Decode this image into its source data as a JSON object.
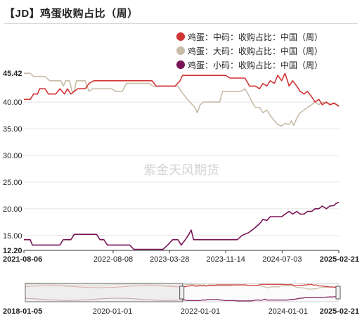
{
  "title": "【JD】鸡蛋收购占比（周）",
  "watermark": "紫金天风期货",
  "colors": {
    "large": "#c8bca8",
    "medium": "#d03535",
    "small": "#7a1557",
    "axis": "#333333",
    "grid": "#e4e4e4"
  },
  "chart_data": {
    "type": "line",
    "title": "【JD】鸡蛋收购占比（周）",
    "xlabel": "",
    "ylabel": "",
    "ylim": [
      12.2,
      45.42
    ],
    "yticks": [
      "45.42",
      "40.00",
      "35.00",
      "30.00",
      "25.00",
      "20.00",
      "15.00",
      "12.20"
    ],
    "x_range": [
      "2021-08-06",
      "2025-02-21"
    ],
    "xticks": [
      "2021-08-06",
      "2022-08-08",
      "2023-03-28",
      "2023-11-14",
      "2024-07-03",
      "2025-02-21"
    ],
    "legend_position": "top-right",
    "series": [
      {
        "name": "鸡蛋：大码：收购占比：中国（周）",
        "color": "#c8bca8",
        "points": [
          [
            "2021-08-06",
            45.4
          ],
          [
            "2021-09-01",
            45.4
          ],
          [
            "2021-09-15",
            44.8
          ],
          [
            "2021-10-01",
            44.8
          ],
          [
            "2021-11-01",
            44.8
          ],
          [
            "2021-11-20",
            44.0
          ],
          [
            "2021-12-15",
            44.0
          ],
          [
            "2022-01-05",
            44.0
          ],
          [
            "2022-01-15",
            43.0
          ],
          [
            "2022-01-25",
            44.0
          ],
          [
            "2022-02-10",
            44.0
          ],
          [
            "2022-02-20",
            42.0
          ],
          [
            "2022-03-01",
            42.0
          ],
          [
            "2022-03-10",
            44.0
          ],
          [
            "2022-04-15",
            44.0
          ],
          [
            "2022-05-01",
            42.0
          ],
          [
            "2022-05-15",
            42.5
          ],
          [
            "2022-06-01",
            42.5
          ],
          [
            "2022-07-01",
            42.5
          ],
          [
            "2022-08-01",
            42.5
          ],
          [
            "2022-08-20",
            42.0
          ],
          [
            "2022-09-15",
            42.0
          ],
          [
            "2022-10-01",
            43.5
          ],
          [
            "2022-11-01",
            43.5
          ],
          [
            "2022-12-01",
            43.5
          ],
          [
            "2023-01-01",
            43.5
          ],
          [
            "2023-01-20",
            43.0
          ],
          [
            "2023-03-01",
            43.0
          ],
          [
            "2023-04-15",
            43.0
          ],
          [
            "2023-05-01",
            43.0
          ],
          [
            "2023-05-15",
            42.0
          ],
          [
            "2023-06-01",
            41.0
          ],
          [
            "2023-06-20",
            40.0
          ],
          [
            "2023-07-10",
            39.0
          ],
          [
            "2023-07-20",
            38.0
          ],
          [
            "2023-08-01",
            39.5
          ],
          [
            "2023-08-15",
            40.0
          ],
          [
            "2023-09-01",
            40.0
          ],
          [
            "2023-10-01",
            40.0
          ],
          [
            "2023-10-20",
            40.0
          ],
          [
            "2023-11-01",
            42.0
          ],
          [
            "2023-11-15",
            42.0
          ],
          [
            "2023-12-15",
            42.0
          ],
          [
            "2024-01-15",
            42.0
          ],
          [
            "2024-02-01",
            42.5
          ],
          [
            "2024-02-20",
            41.0
          ],
          [
            "2024-03-01",
            40.0
          ],
          [
            "2024-03-15",
            39.0
          ],
          [
            "2024-04-01",
            39.0
          ],
          [
            "2024-04-15",
            38.0
          ],
          [
            "2024-05-01",
            38.5
          ],
          [
            "2024-05-15",
            37.5
          ],
          [
            "2024-06-01",
            36.5
          ],
          [
            "2024-06-15",
            35.8
          ],
          [
            "2024-07-01",
            35.5
          ],
          [
            "2024-07-15",
            36.0
          ],
          [
            "2024-08-01",
            35.8
          ],
          [
            "2024-08-10",
            36.5
          ],
          [
            "2024-08-20",
            35.6
          ],
          [
            "2024-09-01",
            37.0
          ],
          [
            "2024-09-15",
            38.0
          ],
          [
            "2024-10-01",
            38.5
          ],
          [
            "2024-10-15",
            39.0
          ],
          [
            "2024-11-01",
            39.5
          ],
          [
            "2024-11-15",
            40.0
          ],
          [
            "2024-12-01",
            39.5
          ],
          [
            "2024-12-15",
            40.0
          ],
          [
            "2025-01-05",
            39.8
          ],
          [
            "2025-01-20",
            39.5
          ],
          [
            "2025-02-01",
            39.8
          ],
          [
            "2025-02-10",
            39.6
          ],
          [
            "2025-02-21",
            39.4
          ]
        ]
      },
      {
        "name": "鸡蛋：中码：收购占比：中国（周）",
        "color": "#d03535",
        "points": [
          [
            "2021-08-06",
            40.5
          ],
          [
            "2021-09-01",
            40.5
          ],
          [
            "2021-09-15",
            41.5
          ],
          [
            "2021-10-01",
            41.5
          ],
          [
            "2021-10-10",
            42.5
          ],
          [
            "2021-11-01",
            42.5
          ],
          [
            "2021-11-15",
            41.5
          ],
          [
            "2021-12-15",
            41.5
          ],
          [
            "2022-01-01",
            42.5
          ],
          [
            "2022-01-20",
            41.5
          ],
          [
            "2022-02-01",
            42.5
          ],
          [
            "2022-02-15",
            41.5
          ],
          [
            "2022-03-15",
            42.5
          ],
          [
            "2022-04-15",
            42.5
          ],
          [
            "2022-05-01",
            43.5
          ],
          [
            "2022-05-20",
            44.0
          ],
          [
            "2022-06-15",
            44.0
          ],
          [
            "2022-08-01",
            44.0
          ],
          [
            "2022-09-15",
            44.0
          ],
          [
            "2022-10-15",
            44.0
          ],
          [
            "2022-11-15",
            44.0
          ],
          [
            "2022-12-15",
            44.0
          ],
          [
            "2023-01-15",
            44.0
          ],
          [
            "2023-02-01",
            43.0
          ],
          [
            "2023-03-01",
            43.0
          ],
          [
            "2023-04-01",
            43.0
          ],
          [
            "2023-04-20",
            43.0
          ],
          [
            "2023-05-10",
            44.0
          ],
          [
            "2023-05-20",
            45.0
          ],
          [
            "2023-06-15",
            45.0
          ],
          [
            "2023-08-01",
            45.0
          ],
          [
            "2023-09-01",
            45.0
          ],
          [
            "2023-10-01",
            45.0
          ],
          [
            "2023-11-01",
            45.0
          ],
          [
            "2023-11-14",
            45.0
          ],
          [
            "2023-12-01",
            44.5
          ],
          [
            "2024-01-01",
            44.5
          ],
          [
            "2024-02-01",
            44.5
          ],
          [
            "2024-02-20",
            43.0
          ],
          [
            "2024-03-15",
            43.0
          ],
          [
            "2024-04-01",
            42.5
          ],
          [
            "2024-04-15",
            43.5
          ],
          [
            "2024-05-01",
            43.0
          ],
          [
            "2024-05-15",
            44.0
          ],
          [
            "2024-06-01",
            43.5
          ],
          [
            "2024-06-15",
            45.0
          ],
          [
            "2024-07-01",
            44.0
          ],
          [
            "2024-07-15",
            45.4
          ],
          [
            "2024-08-01",
            43.0
          ],
          [
            "2024-08-15",
            44.0
          ],
          [
            "2024-09-01",
            43.0
          ],
          [
            "2024-09-15",
            42.0
          ],
          [
            "2024-10-01",
            41.5
          ],
          [
            "2024-10-15",
            42.0
          ],
          [
            "2024-11-01",
            41.0
          ],
          [
            "2024-11-15",
            40.0
          ],
          [
            "2024-12-01",
            40.5
          ],
          [
            "2024-12-15",
            39.5
          ],
          [
            "2025-01-01",
            40.0
          ],
          [
            "2025-01-15",
            39.5
          ],
          [
            "2025-02-01",
            39.8
          ],
          [
            "2025-02-21",
            39.2
          ]
        ]
      },
      {
        "name": "鸡蛋：小码：收购占比：中国（周）",
        "color": "#7a1557",
        "points": [
          [
            "2021-08-06",
            14.2
          ],
          [
            "2021-09-01",
            14.2
          ],
          [
            "2021-09-10",
            13.2
          ],
          [
            "2021-10-01",
            13.2
          ],
          [
            "2021-11-01",
            13.2
          ],
          [
            "2021-12-01",
            13.2
          ],
          [
            "2022-01-01",
            13.2
          ],
          [
            "2022-01-15",
            14.2
          ],
          [
            "2022-02-15",
            14.2
          ],
          [
            "2022-03-01",
            15.2
          ],
          [
            "2022-04-01",
            15.2
          ],
          [
            "2022-05-01",
            15.2
          ],
          [
            "2022-06-01",
            15.2
          ],
          [
            "2022-06-15",
            14.2
          ],
          [
            "2022-07-01",
            14.2
          ],
          [
            "2022-07-15",
            13.2
          ],
          [
            "2022-08-15",
            13.2
          ],
          [
            "2022-09-01",
            13.2
          ],
          [
            "2022-10-15",
            13.2
          ],
          [
            "2022-11-01",
            12.4
          ],
          [
            "2022-12-01",
            12.4
          ],
          [
            "2023-01-01",
            12.4
          ],
          [
            "2023-02-01",
            12.4
          ],
          [
            "2023-03-01",
            12.4
          ],
          [
            "2023-03-20",
            13.2
          ],
          [
            "2023-04-10",
            14.2
          ],
          [
            "2023-05-01",
            14.2
          ],
          [
            "2023-05-15",
            13.2
          ],
          [
            "2023-06-01",
            14.2
          ],
          [
            "2023-06-15",
            15.2
          ],
          [
            "2023-06-25",
            16.0
          ],
          [
            "2023-07-05",
            14.2
          ],
          [
            "2023-08-01",
            14.2
          ],
          [
            "2023-09-01",
            14.2
          ],
          [
            "2023-10-01",
            14.2
          ],
          [
            "2023-11-01",
            14.2
          ],
          [
            "2023-12-01",
            14.2
          ],
          [
            "2024-01-01",
            14.2
          ],
          [
            "2024-01-20",
            15.0
          ],
          [
            "2024-02-15",
            15.5
          ],
          [
            "2024-03-01",
            16.0
          ],
          [
            "2024-03-15",
            16.5
          ],
          [
            "2024-04-01",
            17.2
          ],
          [
            "2024-04-15",
            18.0
          ],
          [
            "2024-05-01",
            17.8
          ],
          [
            "2024-05-15",
            18.5
          ],
          [
            "2024-06-01",
            18.5
          ],
          [
            "2024-06-15",
            18.5
          ],
          [
            "2024-07-01",
            18.5
          ],
          [
            "2024-07-15",
            19.0
          ],
          [
            "2024-08-01",
            19.5
          ],
          [
            "2024-08-15",
            19.0
          ],
          [
            "2024-09-01",
            19.5
          ],
          [
            "2024-09-15",
            19.0
          ],
          [
            "2024-10-01",
            19.0
          ],
          [
            "2024-10-15",
            19.5
          ],
          [
            "2024-11-01",
            19.5
          ],
          [
            "2024-11-15",
            20.0
          ],
          [
            "2024-12-01",
            20.0
          ],
          [
            "2024-12-15",
            20.5
          ],
          [
            "2025-01-01",
            20.0
          ],
          [
            "2025-01-15",
            20.5
          ],
          [
            "2025-02-01",
            20.6
          ],
          [
            "2025-02-10",
            21.0
          ],
          [
            "2025-02-21",
            21.2
          ]
        ]
      }
    ],
    "navigator": {
      "x_range": [
        "2018-01-05",
        "2025-02-21"
      ],
      "xticks": [
        "2018-01-05",
        "2020-01-01",
        "2022-01-01",
        "2024-01-01",
        "2025-02-21"
      ],
      "window": [
        "2018-01-05",
        "2021-08-06"
      ]
    }
  }
}
